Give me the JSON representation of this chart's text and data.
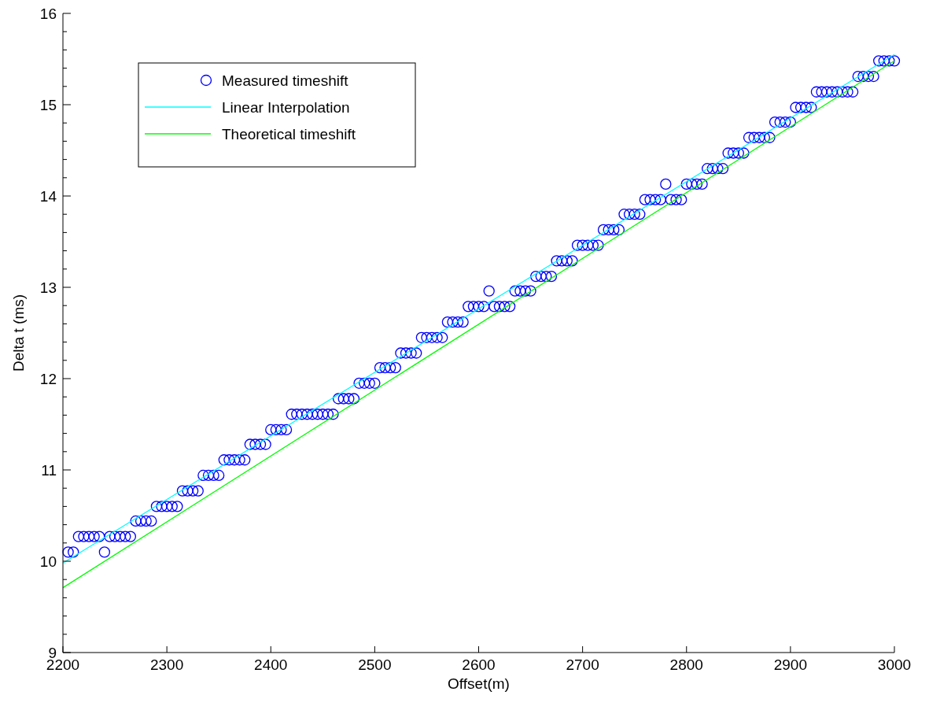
{
  "chart_data": {
    "type": "scatter",
    "xlabel": "Offset(m)",
    "ylabel": "Delta t (ms)",
    "xlim": [
      2200,
      3000
    ],
    "xticks": [
      2200,
      2300,
      2400,
      2500,
      2600,
      2700,
      2800,
      2900,
      3000
    ],
    "ylim": [
      9,
      16
    ],
    "yticks": [
      9,
      {
        "value": 9.2,
        "label": null
      },
      {
        "value": 9.4,
        "label": null
      },
      {
        "value": 9.6,
        "label": null
      },
      {
        "value": 9.8,
        "label": null
      },
      10,
      {
        "value": 10.2,
        "label": null
      },
      {
        "value": 10.4,
        "label": null
      },
      {
        "value": 10.6,
        "label": null
      },
      {
        "value": 10.8,
        "label": null
      },
      11,
      {
        "value": 11.2,
        "label": null
      },
      {
        "value": 11.4,
        "label": null
      },
      {
        "value": 11.6,
        "label": null
      },
      {
        "value": 11.8,
        "label": null
      },
      12,
      {
        "value": 12.2,
        "label": null
      },
      {
        "value": 12.4,
        "label": null
      },
      {
        "value": 12.6,
        "label": null
      },
      {
        "value": 12.8,
        "label": null
      },
      13,
      {
        "value": 13.2,
        "label": null
      },
      {
        "value": 13.4,
        "label": null
      },
      {
        "value": 13.6,
        "label": null
      },
      {
        "value": 13.8,
        "label": null
      },
      14,
      {
        "value": 14.2,
        "label": null
      },
      {
        "value": 14.4,
        "label": null
      },
      {
        "value": 14.6,
        "label": null
      },
      {
        "value": 14.8,
        "label": null
      },
      15,
      {
        "value": 15.2,
        "label": null
      },
      {
        "value": 15.4,
        "label": null
      },
      {
        "value": 15.6,
        "label": null
      },
      {
        "value": 15.8,
        "label": null
      },
      16
    ],
    "grid": false,
    "legend": "top left",
    "series": [
      {
        "name": "Measured timeshift",
        "marker": "circle",
        "color": "#0000ff",
        "x": [
          2205,
          2210,
          2215,
          2220,
          2225,
          2230,
          2235,
          2240,
          2245,
          2250,
          2255,
          2260,
          2265,
          2270,
          2275,
          2280,
          2285,
          2290,
          2295,
          2300,
          2305,
          2310,
          2315,
          2320,
          2325,
          2330,
          2335,
          2340,
          2345,
          2350,
          2355,
          2360,
          2365,
          2370,
          2375,
          2380,
          2385,
          2390,
          2395,
          2400,
          2405,
          2410,
          2415,
          2420,
          2425,
          2430,
          2435,
          2440,
          2445,
          2450,
          2455,
          2460,
          2465,
          2470,
          2475,
          2480,
          2485,
          2490,
          2495,
          2500,
          2505,
          2510,
          2515,
          2520,
          2525,
          2530,
          2535,
          2540,
          2545,
          2550,
          2555,
          2560,
          2565,
          2570,
          2575,
          2580,
          2585,
          2590,
          2595,
          2600,
          2605,
          2610,
          2615,
          2620,
          2625,
          2630,
          2635,
          2640,
          2645,
          2650,
          2655,
          2660,
          2665,
          2670,
          2675,
          2680,
          2685,
          2690,
          2695,
          2700,
          2705,
          2710,
          2715,
          2720,
          2725,
          2730,
          2735,
          2740,
          2745,
          2750,
          2755,
          2760,
          2765,
          2770,
          2775,
          2780,
          2785,
          2790,
          2795,
          2800,
          2805,
          2810,
          2815,
          2820,
          2825,
          2830,
          2835,
          2840,
          2845,
          2850,
          2855,
          2860,
          2865,
          2870,
          2875,
          2880,
          2885,
          2890,
          2895,
          2900,
          2905,
          2910,
          2915,
          2920,
          2925,
          2930,
          2935,
          2940,
          2945,
          2950,
          2955,
          2960,
          2965,
          2970,
          2975,
          2980,
          2985,
          2990,
          2995,
          3000
        ],
        "values": [
          10.1,
          10.1,
          10.27,
          10.27,
          10.27,
          10.27,
          10.27,
          10.1,
          10.27,
          10.27,
          10.27,
          10.27,
          10.27,
          10.44,
          10.44,
          10.44,
          10.44,
          10.6,
          10.6,
          10.6,
          10.6,
          10.6,
          10.77,
          10.77,
          10.77,
          10.77,
          10.94,
          10.94,
          10.94,
          10.94,
          11.11,
          11.11,
          11.11,
          11.11,
          11.11,
          11.28,
          11.28,
          11.28,
          11.28,
          11.44,
          11.44,
          11.44,
          11.44,
          11.61,
          11.61,
          11.61,
          11.61,
          11.61,
          11.61,
          11.61,
          11.61,
          11.61,
          11.78,
          11.78,
          11.78,
          11.78,
          11.95,
          11.95,
          11.95,
          11.95,
          12.12,
          12.12,
          12.12,
          12.12,
          12.28,
          12.28,
          12.28,
          12.28,
          12.45,
          12.45,
          12.45,
          12.45,
          12.45,
          12.62,
          12.62,
          12.62,
          12.62,
          12.79,
          12.79,
          12.79,
          12.79,
          12.96,
          12.79,
          12.79,
          12.79,
          12.79,
          12.96,
          12.96,
          12.96,
          12.96,
          13.12,
          13.12,
          13.12,
          13.12,
          13.29,
          13.29,
          13.29,
          13.29,
          13.46,
          13.46,
          13.46,
          13.46,
          13.46,
          13.63,
          13.63,
          13.63,
          13.63,
          13.8,
          13.8,
          13.8,
          13.8,
          13.96,
          13.96,
          13.96,
          13.96,
          14.13,
          13.96,
          13.96,
          13.96,
          14.13,
          14.13,
          14.13,
          14.13,
          14.3,
          14.3,
          14.3,
          14.3,
          14.47,
          14.47,
          14.47,
          14.47,
          14.64,
          14.64,
          14.64,
          14.64,
          14.64,
          14.81,
          14.81,
          14.81,
          14.81,
          14.97,
          14.97,
          14.97,
          14.97,
          15.14,
          15.14,
          15.14,
          15.14,
          15.14,
          15.14,
          15.14,
          15.14,
          15.31,
          15.31,
          15.31,
          15.31,
          15.48,
          15.48,
          15.48,
          15.48
        ]
      },
      {
        "name": "Linear Interpolation",
        "type": "line",
        "marker": "none",
        "line_style": "solid",
        "color": "#00ffff",
        "x": [
          2200,
          3000
        ],
        "values": [
          9.98,
          15.55
        ]
      },
      {
        "name": "Theoretical timeshift",
        "type": "line",
        "marker": "none",
        "line_style": "solid",
        "color": "#00ff00",
        "x": [
          2200,
          3000
        ],
        "values": [
          9.71,
          15.48
        ]
      }
    ]
  }
}
